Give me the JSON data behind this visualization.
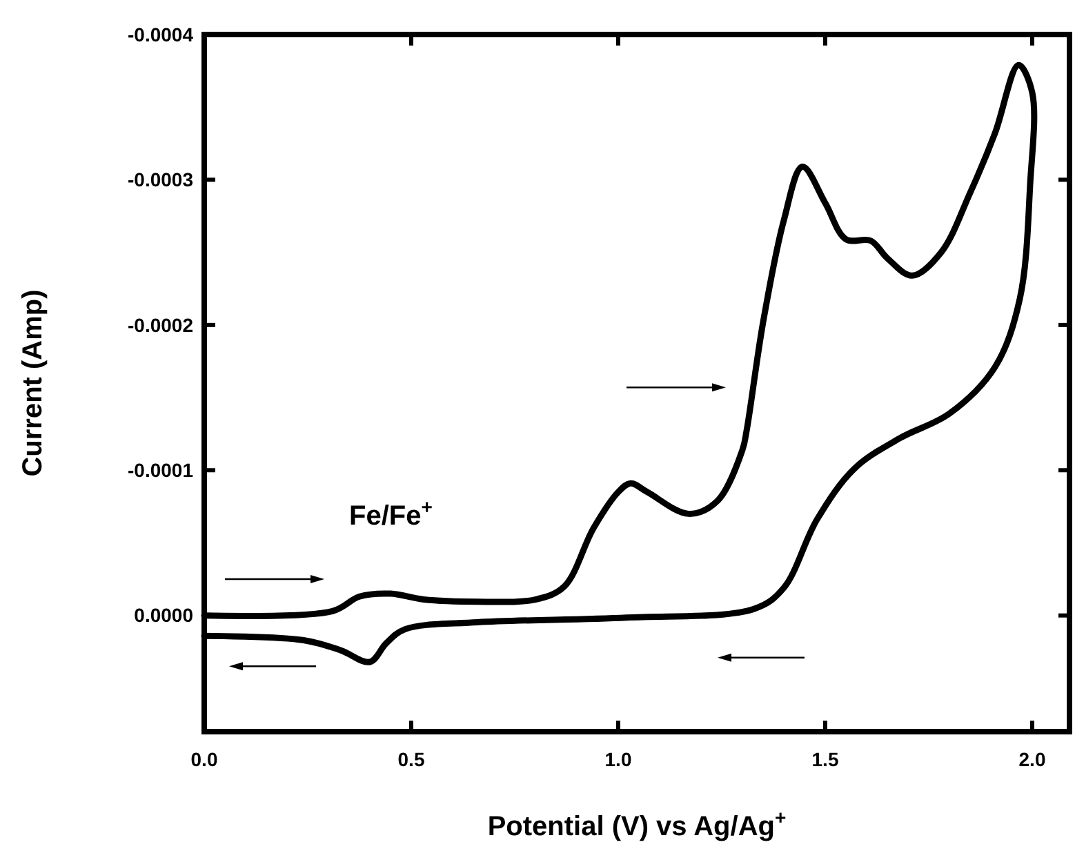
{
  "chart_data": {
    "type": "line",
    "xlabel": "Potential (V) vs Ag/Ag$^{+}$",
    "ylabel": "Current (Amp)",
    "annotations": [
      {
        "text": "Fe/Fe$^{+}$",
        "x": 0.45,
        "y": -1.5e-05
      }
    ],
    "xlim": [
      0,
      2.09
    ],
    "ylim": [
      8e-05,
      -0.0004
    ],
    "xticks": [
      {
        "value": 0,
        "label": "0.0"
      },
      {
        "value": 0.5,
        "label": "0.5"
      },
      {
        "value": 1,
        "label": "1.0"
      },
      {
        "value": 1.5,
        "label": "1.5"
      },
      {
        "value": 2,
        "label": "2.0"
      }
    ],
    "yticks": [
      {
        "value": 0,
        "label": "0.0000"
      },
      {
        "value": -0.0001,
        "label": "-0.0001"
      },
      {
        "value": -0.0002,
        "label": "-0.0002"
      },
      {
        "value": -0.0003,
        "label": "-0.0003"
      },
      {
        "value": -0.0004,
        "label": "-0.0004"
      }
    ],
    "grid": false,
    "marker": "none",
    "line_style": "solid",
    "series": [
      {
        "color": "#000000",
        "x": [
          0,
          0.31,
          0.375,
          0.45,
          0.53,
          0.66,
          0.8,
          0.87,
          0.94,
          1.0,
          1.03,
          1.07,
          1.17,
          1.24,
          1.3,
          1.31,
          1.35,
          1.4,
          1.445,
          1.5,
          1.55,
          1.61,
          1.65,
          1.71,
          1.78,
          1.85,
          1.91,
          1.967,
          2.0,
          1.995,
          1.97,
          1.91,
          1.8,
          1.68,
          1.57,
          1.48,
          1.4,
          1.33,
          1.02,
          0.66,
          0.485,
          0.44,
          0.4,
          0.33,
          0.24,
          0
        ],
        "values": [
          0,
          -3e-06,
          -1.3e-05,
          -1.5e-05,
          -1.1e-05,
          -9.5e-06,
          -1.1e-05,
          -2e-05,
          -6e-05,
          -8.5e-05,
          -9.1e-05,
          -8.5e-05,
          -7e-05,
          -7.9e-05,
          -0.000114,
          -0.000127,
          -0.000202,
          -0.000272,
          -0.000309,
          -0.000284,
          -0.000259,
          -0.000258,
          -0.000246,
          -0.000234,
          -0.00025,
          -0.000291,
          -0.000332,
          -0.000379,
          -0.00036,
          -0.000297,
          -0.000218,
          -0.000171,
          -0.000139,
          -0.000122,
          -0.000101,
          -6.6e-05,
          -1.9e-05,
          -4.7e-06,
          1.5e-06,
          4.7e-06,
          9.5e-06,
          1.9e-05,
          3.2e-05,
          2.4e-05,
          1.7e-05,
          1.4e-05
        ]
      }
    ]
  }
}
